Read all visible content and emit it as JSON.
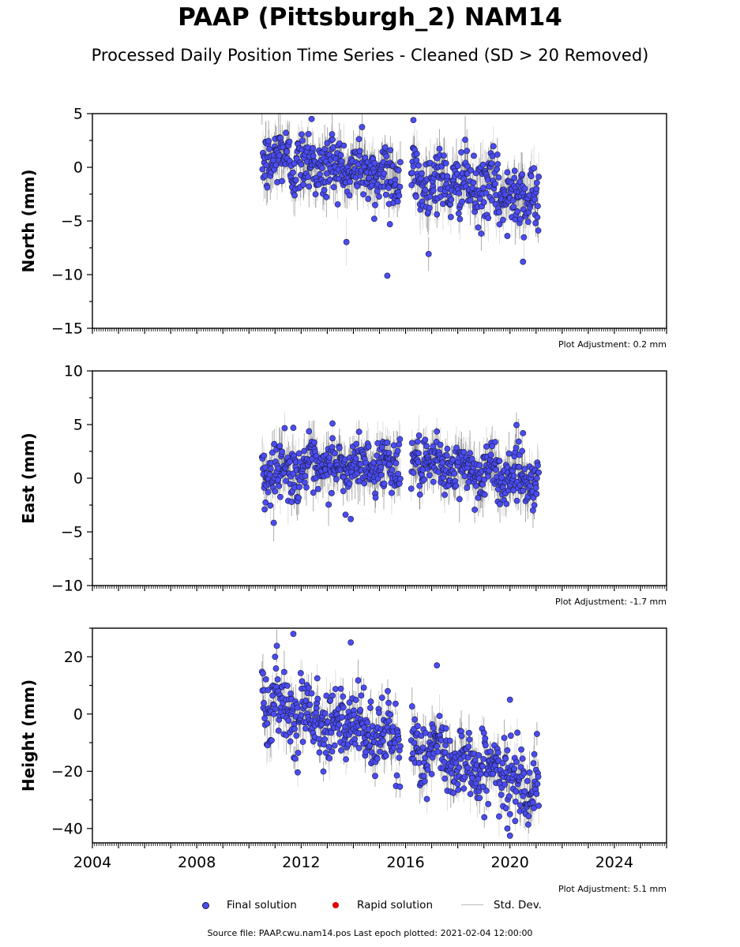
{
  "title": "PAAP (Pittsburgh_2) NAM14",
  "subtitle": "Processed Daily Position Time Series - Cleaned (SD > 20 Removed)",
  "footer": "Source file: PAAP.cwu.nam14.pos  Last epoch plotted: 2021-02-04 12:00:00",
  "legend": {
    "final": "Final solution",
    "rapid": "Rapid solution",
    "std": "Std. Dev."
  },
  "colors": {
    "final": "#4a4cf2",
    "final_edge": "#1a1a40",
    "rapid": "#e00000",
    "std": "#bbbbbb",
    "std_dense": "#555555"
  },
  "chart_data": [
    {
      "type": "scatter",
      "ylabel": "North (mm)",
      "ylim": [
        -15,
        5
      ],
      "yticks": [
        5,
        0,
        -5,
        -10,
        -15
      ],
      "xlim": [
        2004,
        2026
      ],
      "adjustment": "Plot Adjustment: 0.2 mm",
      "data_span": [
        2010.5,
        2021.1
      ],
      "gap": [
        2015.8,
        2016.2
      ],
      "trend": [
        [
          2010.5,
          1.0
        ],
        [
          2021.1,
          -2.8
        ]
      ],
      "scatter_sd": 1.5,
      "errorbar_halfwidth": 1.6,
      "outliers": [
        [
          2012.4,
          4.5
        ],
        [
          2016.3,
          4.4
        ],
        [
          2014.8,
          -4.8
        ],
        [
          2015.3,
          -10.1
        ],
        [
          2015.4,
          -5.3
        ],
        [
          2020.5,
          -8.8
        ],
        [
          2019.9,
          -6.4
        ]
      ]
    },
    {
      "type": "scatter",
      "ylabel": "East (mm)",
      "ylim": [
        -10,
        10
      ],
      "yticks": [
        10,
        5,
        0,
        -5,
        -10
      ],
      "xlim": [
        2004,
        2026
      ],
      "adjustment": "Plot Adjustment: -1.7 mm",
      "data_span": [
        2010.5,
        2021.1
      ],
      "gap": [
        2015.8,
        2016.2
      ],
      "trend": [
        [
          2010.5,
          0.6
        ],
        [
          2016.2,
          1.4
        ],
        [
          2021.1,
          0.0
        ]
      ],
      "scatter_sd": 1.2,
      "errorbar_halfwidth": 1.5,
      "outliers": [
        [
          2013.2,
          5.1
        ],
        [
          2011.7,
          4.7
        ],
        [
          2013.9,
          -3.8
        ],
        [
          2010.6,
          -2.9
        ],
        [
          2020.5,
          4.2
        ],
        [
          2013.7,
          -3.4
        ]
      ]
    },
    {
      "type": "scatter",
      "ylabel": "Height (mm)",
      "ylim": [
        -45,
        30
      ],
      "yticks": [
        20,
        0,
        -20,
        -40
      ],
      "xlim": [
        2004,
        2026
      ],
      "xticks": [
        2004,
        2008,
        2012,
        2016,
        2020,
        2024
      ],
      "adjustment": "Plot Adjustment: 5.1 mm",
      "data_span": [
        2010.5,
        2021.1
      ],
      "gap": [
        2015.8,
        2016.2
      ],
      "trend": [
        [
          2010.5,
          5.0
        ],
        [
          2021.1,
          -25.0
        ]
      ],
      "scatter_sd": 6.0,
      "errorbar_halfwidth": 5.0,
      "outliers": [
        [
          2011.7,
          28.0
        ],
        [
          2013.9,
          25.0
        ],
        [
          2017.2,
          17.0
        ],
        [
          2020.0,
          -42.5
        ],
        [
          2019.9,
          -40.0
        ],
        [
          2020.0,
          5.0
        ],
        [
          2011.0,
          20.0
        ]
      ]
    }
  ]
}
